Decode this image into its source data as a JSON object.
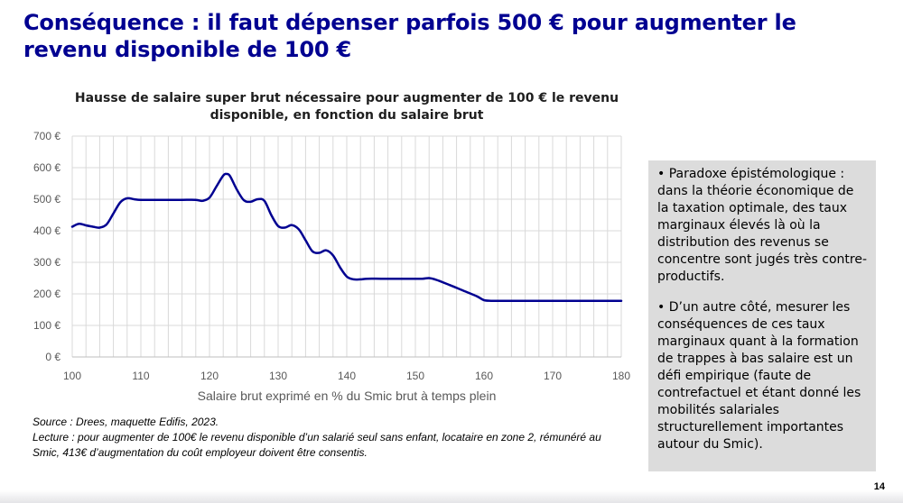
{
  "slide": {
    "title": "Conséquence : il faut dépenser parfois 500 € pour augmenter le revenu disponible de 100 €",
    "page_number": "14",
    "accent_color": "#000091"
  },
  "notes": {
    "source": "Source : Drees, maquette Edifis, 2023.",
    "lecture": "Lecture : pour augmenter de 100€ le revenu disponible d’un salarié seul sans enfant, locataire en zone 2, rémunéré au Smic, 413€ d’augmentation du coût employeur doivent être consentis."
  },
  "sidebar": {
    "paragraphs": [
      "• Paradoxe épistémologique : dans la théorie économique de la taxation optimale, des taux marginaux élevés là où la distribution des revenus se concentre sont jugés très contre-productifs.",
      "• D’un autre côté, mesurer les conséquences de ces taux marginaux quant à la formation de trappes à bas salaire est un défi empirique (faute de contrefactuel et étant donné les mobilités salariales structurellement importantes autour du Smic)."
    ]
  },
  "chart_data": {
    "type": "line",
    "title": "Hausse de salaire super brut nécessaire pour augmenter de 100 € le revenu disponible, en fonction du salaire brut",
    "xlabel": "Salaire brut exprimé en % du Smic brut à temps plein",
    "ylabel": "",
    "xlim": [
      100,
      180
    ],
    "ylim": [
      0,
      700
    ],
    "xticks": [
      "100",
      "110",
      "120",
      "130",
      "140",
      "150",
      "160",
      "170",
      "180"
    ],
    "yticks": [
      "0 €",
      "100 €",
      "200 €",
      "300 €",
      "400 €",
      "500 €",
      "600 €",
      "700 €"
    ],
    "grid": true,
    "line_color": "#000091",
    "series": [
      {
        "name": "",
        "x": [
          100,
          101,
          102,
          103,
          104,
          105,
          106,
          107,
          108,
          109,
          110,
          112,
          114,
          116,
          118,
          119,
          120,
          121,
          122,
          122.5,
          123,
          124,
          125,
          126,
          127,
          128,
          129,
          130,
          131,
          132,
          133,
          134,
          135,
          136,
          137,
          138,
          139,
          140,
          141,
          142,
          143,
          145,
          147,
          149,
          151,
          152,
          153,
          155,
          157,
          159,
          160,
          161,
          162,
          164,
          166,
          168,
          170,
          172,
          174,
          176,
          178,
          180
        ],
        "y": [
          413,
          422,
          417,
          413,
          410,
          420,
          455,
          490,
          503,
          500,
          498,
          498,
          498,
          498,
          498,
          495,
          505,
          540,
          575,
          580,
          573,
          530,
          497,
          492,
          500,
          495,
          450,
          415,
          410,
          418,
          405,
          370,
          335,
          330,
          338,
          322,
          285,
          255,
          246,
          246,
          248,
          248,
          248,
          248,
          248,
          250,
          245,
          228,
          210,
          192,
          180,
          178,
          178,
          178,
          178,
          178,
          178,
          178,
          178,
          178,
          178,
          178
        ]
      }
    ]
  }
}
